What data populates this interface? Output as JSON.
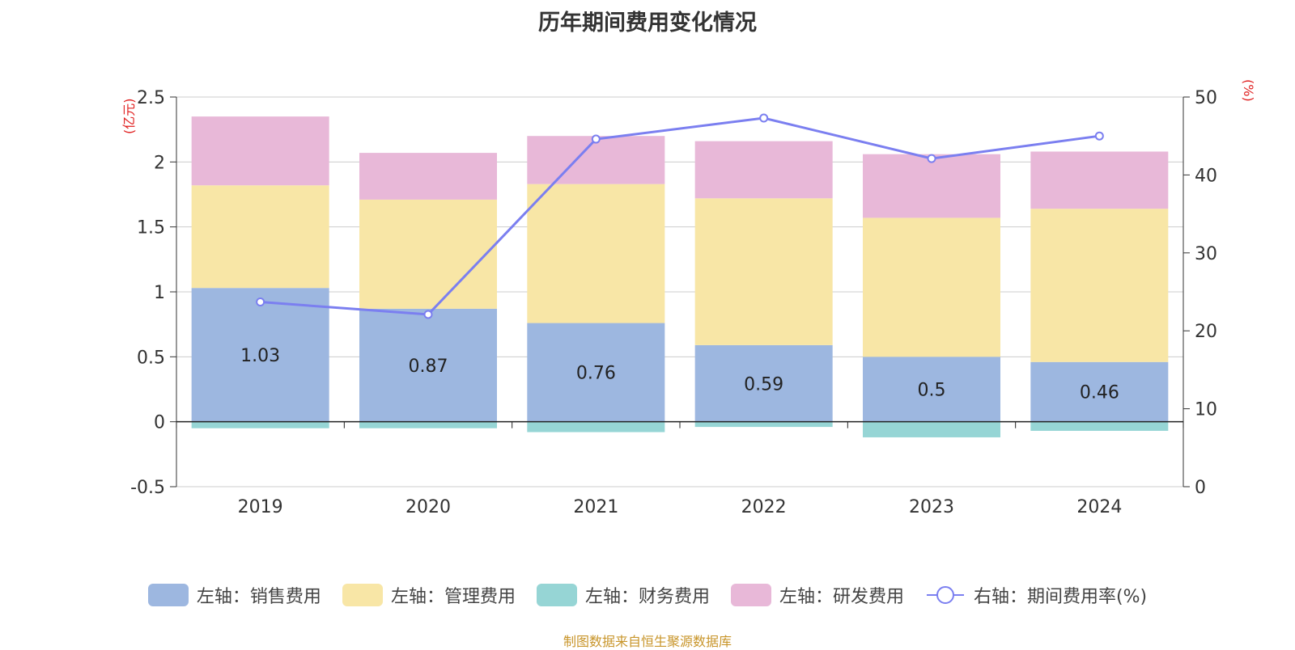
{
  "title": "历年期间费用变化情况",
  "left_unit": "(亿元)",
  "right_unit": "(%)",
  "source": "制图数据来自恒生聚源数据库",
  "colors": {
    "sales": "#9db7e0",
    "admin": "#f8e6a6",
    "finance": "#96d5d5",
    "rd": "#e8b8d8",
    "rate": "#7b7ff0"
  },
  "legend": [
    {
      "label": "左轴：销售费用",
      "color": "#9db7e0",
      "kind": "bar"
    },
    {
      "label": "左轴：管理费用",
      "color": "#f8e6a6",
      "kind": "bar"
    },
    {
      "label": "左轴：财务费用",
      "color": "#96d5d5",
      "kind": "bar"
    },
    {
      "label": "左轴：研发费用",
      "color": "#e8b8d8",
      "kind": "bar"
    },
    {
      "label": "右轴：期间费用率(%)",
      "color": "#7b7ff0",
      "kind": "line"
    }
  ],
  "chart_data": {
    "type": "bar",
    "stacked": true,
    "categories": [
      "2019",
      "2020",
      "2021",
      "2022",
      "2023",
      "2024"
    ],
    "series": [
      {
        "name": "左轴：销售费用",
        "axis": "left",
        "values": [
          1.03,
          0.87,
          0.76,
          0.59,
          0.5,
          0.46
        ],
        "labeled": true
      },
      {
        "name": "左轴：管理费用",
        "axis": "left",
        "values": [
          0.79,
          0.84,
          1.07,
          1.13,
          1.07,
          1.18
        ]
      },
      {
        "name": "左轴：财务费用",
        "axis": "left",
        "values": [
          -0.05,
          -0.05,
          -0.08,
          -0.04,
          -0.12,
          -0.07
        ]
      },
      {
        "name": "左轴：研发费用",
        "axis": "left",
        "values": [
          0.53,
          0.36,
          0.37,
          0.44,
          0.49,
          0.44
        ]
      },
      {
        "name": "右轴：期间费用率(%)",
        "axis": "right",
        "type": "line",
        "values": [
          23.7,
          22.1,
          44.6,
          47.3,
          42.1,
          45.0
        ]
      }
    ],
    "y_left": {
      "min": -0.5,
      "max": 2.5,
      "ticks": [
        "-0.5",
        "0",
        "0.5",
        "1",
        "1.5",
        "2",
        "2.5"
      ]
    },
    "y_right": {
      "min": 0,
      "max": 50,
      "ticks": [
        "0",
        "10",
        "20",
        "30",
        "40",
        "50"
      ]
    },
    "grid": true,
    "legend_position": "bottom"
  }
}
